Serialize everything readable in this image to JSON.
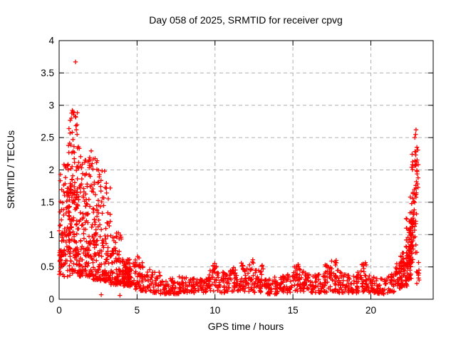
{
  "chart_data": {
    "type": "scatter",
    "title": "Day 058 of 2025, SRMTID for receiver cpvg",
    "xlabel": "GPS time / hours",
    "ylabel": "SRMTID / TECUs",
    "xlim": [
      0,
      24
    ],
    "ylim": [
      0,
      4
    ],
    "xticks": [
      {
        "v": 0,
        "label": "0"
      },
      {
        "v": 5,
        "label": "5"
      },
      {
        "v": 10,
        "label": "10"
      },
      {
        "v": 15,
        "label": "15"
      },
      {
        "v": 20,
        "label": "20"
      }
    ],
    "yticks": [
      {
        "v": 0,
        "label": "0"
      },
      {
        "v": 0.5,
        "label": "0.5"
      },
      {
        "v": 1,
        "label": "1"
      },
      {
        "v": 1.5,
        "label": "1.5"
      },
      {
        "v": 2,
        "label": "2"
      },
      {
        "v": 2.5,
        "label": "2.5"
      },
      {
        "v": 3,
        "label": "3"
      },
      {
        "v": 3.5,
        "label": "3.5"
      },
      {
        "v": 4,
        "label": "4"
      }
    ],
    "grid": true,
    "legend": "none",
    "marker": "plus",
    "marker_color": "#ff0000",
    "grid_color": "#b0b0b0",
    "axis_color": "#000000",
    "seed": 7,
    "bins_format": "[t_start_hours, t_end_hours, n_points, y_min_TECUs, y_max_TECUs, skew_toward_min]",
    "bins": [
      [
        0.0,
        0.3,
        12,
        1.0,
        1.95,
        1.0
      ],
      [
        0.02,
        0.22,
        14,
        0.52,
        0.74,
        1.0
      ],
      [
        0.0,
        0.3,
        22,
        0.38,
        1.05,
        1.3
      ],
      [
        0.25,
        0.7,
        55,
        0.35,
        2.1,
        1.6
      ],
      [
        0.6,
        1.3,
        150,
        0.4,
        2.45,
        1.5
      ],
      [
        0.6,
        1.2,
        12,
        2.45,
        2.92,
        1.0
      ],
      [
        1.3,
        2.1,
        130,
        0.35,
        2.3,
        1.7
      ],
      [
        2.1,
        2.65,
        90,
        0.3,
        2.2,
        1.9
      ],
      [
        2.65,
        3.3,
        85,
        0.28,
        2.05,
        2.3
      ],
      [
        3.3,
        4.05,
        85,
        0.22,
        1.05,
        1.6
      ],
      [
        4.05,
        4.7,
        90,
        0.2,
        0.62,
        1.2
      ],
      [
        4.7,
        5.3,
        32,
        0.13,
        0.55,
        1.3
      ],
      [
        4.75,
        5.45,
        10,
        0.5,
        0.66,
        1.0
      ],
      [
        5.3,
        5.9,
        32,
        0.12,
        0.5,
        1.3
      ],
      [
        5.9,
        6.5,
        32,
        0.1,
        0.42,
        1.3
      ],
      [
        6.5,
        7.1,
        32,
        0.08,
        0.3,
        1.3
      ],
      [
        7.1,
        7.7,
        32,
        0.08,
        0.32,
        1.3
      ],
      [
        7.7,
        8.3,
        32,
        0.1,
        0.35,
        1.3
      ],
      [
        8.3,
        8.9,
        32,
        0.1,
        0.32,
        1.3
      ],
      [
        8.9,
        9.5,
        32,
        0.1,
        0.35,
        1.3
      ],
      [
        9.5,
        10.1,
        32,
        0.12,
        0.5,
        1.3
      ],
      [
        9.7,
        10.1,
        6,
        0.45,
        0.56,
        1.0
      ],
      [
        10.1,
        10.7,
        32,
        0.1,
        0.42,
        1.3
      ],
      [
        10.7,
        11.3,
        32,
        0.12,
        0.45,
        1.3
      ],
      [
        10.9,
        11.2,
        5,
        0.4,
        0.55,
        1.0
      ],
      [
        11.3,
        11.9,
        32,
        0.12,
        0.48,
        1.3
      ],
      [
        11.6,
        11.9,
        6,
        0.45,
        0.6,
        1.0
      ],
      [
        11.9,
        12.5,
        32,
        0.12,
        0.5,
        1.3
      ],
      [
        12.2,
        12.5,
        6,
        0.45,
        0.62,
        1.0
      ],
      [
        12.5,
        13.1,
        32,
        0.1,
        0.45,
        1.3
      ],
      [
        12.9,
        13.1,
        5,
        0.4,
        0.55,
        1.0
      ],
      [
        13.1,
        13.7,
        32,
        0.08,
        0.35,
        1.3
      ],
      [
        13.7,
        14.3,
        32,
        0.08,
        0.35,
        1.3
      ],
      [
        14.3,
        14.9,
        32,
        0.1,
        0.4,
        1.3
      ],
      [
        14.9,
        15.5,
        32,
        0.12,
        0.5,
        1.3
      ],
      [
        15.1,
        15.5,
        7,
        0.45,
        0.58,
        1.0
      ],
      [
        15.5,
        16.1,
        32,
        0.12,
        0.45,
        1.3
      ],
      [
        16.1,
        16.7,
        32,
        0.1,
        0.4,
        1.3
      ],
      [
        16.7,
        17.3,
        32,
        0.1,
        0.45,
        1.3
      ],
      [
        17.0,
        17.3,
        6,
        0.42,
        0.55,
        1.0
      ],
      [
        17.3,
        17.9,
        32,
        0.12,
        0.5,
        1.3
      ],
      [
        17.4,
        17.8,
        7,
        0.45,
        0.62,
        1.0
      ],
      [
        17.9,
        18.5,
        32,
        0.1,
        0.42,
        1.3
      ],
      [
        18.5,
        19.1,
        32,
        0.08,
        0.38,
        1.3
      ],
      [
        19.1,
        19.7,
        32,
        0.1,
        0.45,
        1.3
      ],
      [
        19.4,
        19.8,
        7,
        0.42,
        0.57,
        1.0
      ],
      [
        19.7,
        20.3,
        32,
        0.1,
        0.38,
        1.3
      ],
      [
        20.3,
        20.9,
        32,
        0.08,
        0.32,
        1.3
      ],
      [
        20.9,
        21.5,
        32,
        0.1,
        0.4,
        1.3
      ],
      [
        21.5,
        22.0,
        30,
        0.15,
        0.5,
        1.3
      ],
      [
        21.6,
        22.0,
        8,
        0.4,
        0.58,
        1.0
      ],
      [
        21.9,
        22.35,
        45,
        0.2,
        0.8,
        1.4
      ],
      [
        22.25,
        22.6,
        55,
        0.3,
        1.3,
        1.3
      ],
      [
        22.45,
        22.75,
        45,
        0.5,
        1.8,
        1.2
      ],
      [
        22.6,
        22.95,
        40,
        0.7,
        2.3,
        1.1
      ],
      [
        22.75,
        23.05,
        18,
        1.5,
        2.45,
        1.0
      ],
      [
        22.9,
        23.1,
        10,
        0.2,
        0.6,
        1.0
      ]
    ],
    "notable_points": [
      [
        1.05,
        3.67
      ],
      [
        0.85,
        2.92
      ],
      [
        0.95,
        2.85
      ],
      [
        0.78,
        2.8
      ],
      [
        1.1,
        2.62
      ],
      [
        0.7,
        2.57
      ],
      [
        1.15,
        2.55
      ],
      [
        22.9,
        2.62
      ],
      [
        22.87,
        2.55
      ],
      [
        22.82,
        2.5
      ],
      [
        2.7,
        0.07
      ],
      [
        3.9,
        0.06
      ]
    ]
  }
}
